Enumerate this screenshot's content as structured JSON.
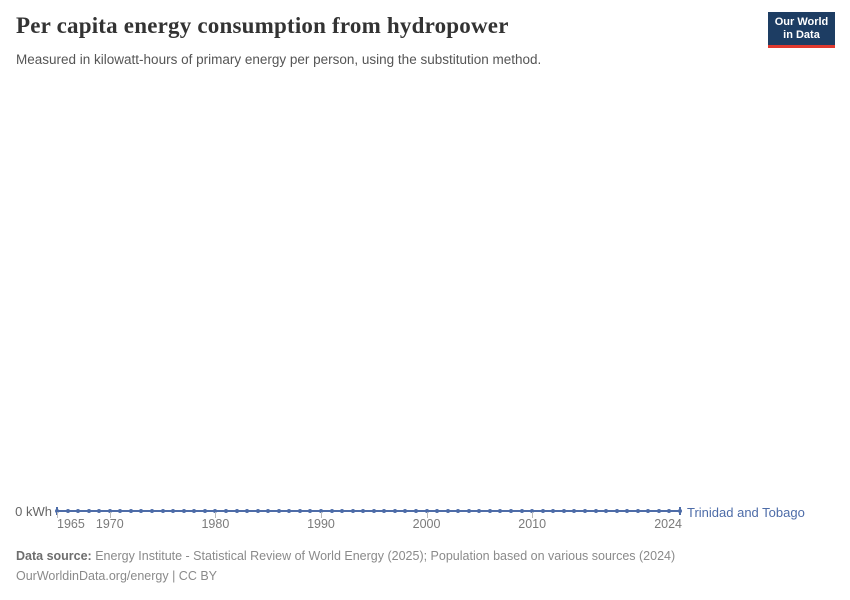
{
  "header": {
    "title": "Per capita energy consumption from hydropower",
    "subtitle": "Measured in kilowatt-hours of primary energy per person, using the substitution method.",
    "logo": {
      "line1": "Our World",
      "line2": "in Data",
      "bg_color": "#1d3d63",
      "accent_color": "#e0392f"
    }
  },
  "chart_data": {
    "type": "line",
    "title": "Per capita energy consumption from hydropower",
    "xlabel": "",
    "ylabel": "",
    "y_zero_label": "0 kWh",
    "xlim": [
      1965,
      2024
    ],
    "ylim": [
      0,
      0
    ],
    "grid": false,
    "legend_position": "end-of-line",
    "x_tick_labels": [
      "1965",
      "1970",
      "1980",
      "1990",
      "2000",
      "2010",
      "2024"
    ],
    "series": [
      {
        "name": "Trinidad and Tobago",
        "color": "#4d6ca8",
        "x": [
          1965,
          1966,
          1967,
          1968,
          1969,
          1970,
          1971,
          1972,
          1973,
          1974,
          1975,
          1976,
          1977,
          1978,
          1979,
          1980,
          1981,
          1982,
          1983,
          1984,
          1985,
          1986,
          1987,
          1988,
          1989,
          1990,
          1991,
          1992,
          1993,
          1994,
          1995,
          1996,
          1997,
          1998,
          1999,
          2000,
          2001,
          2002,
          2003,
          2004,
          2005,
          2006,
          2007,
          2008,
          2009,
          2010,
          2011,
          2012,
          2013,
          2014,
          2015,
          2016,
          2017,
          2018,
          2019,
          2020,
          2021,
          2022,
          2023,
          2024
        ],
        "values": [
          0,
          0,
          0,
          0,
          0,
          0,
          0,
          0,
          0,
          0,
          0,
          0,
          0,
          0,
          0,
          0,
          0,
          0,
          0,
          0,
          0,
          0,
          0,
          0,
          0,
          0,
          0,
          0,
          0,
          0,
          0,
          0,
          0,
          0,
          0,
          0,
          0,
          0,
          0,
          0,
          0,
          0,
          0,
          0,
          0,
          0,
          0,
          0,
          0,
          0,
          0,
          0,
          0,
          0,
          0,
          0,
          0,
          0,
          0,
          0
        ]
      }
    ]
  },
  "footer": {
    "source_label": "Data source:",
    "source_text": "Energy Institute - Statistical Review of World Energy (2025); Population based on various sources (2024)",
    "license_text": "OurWorldinData.org/energy | CC BY"
  }
}
